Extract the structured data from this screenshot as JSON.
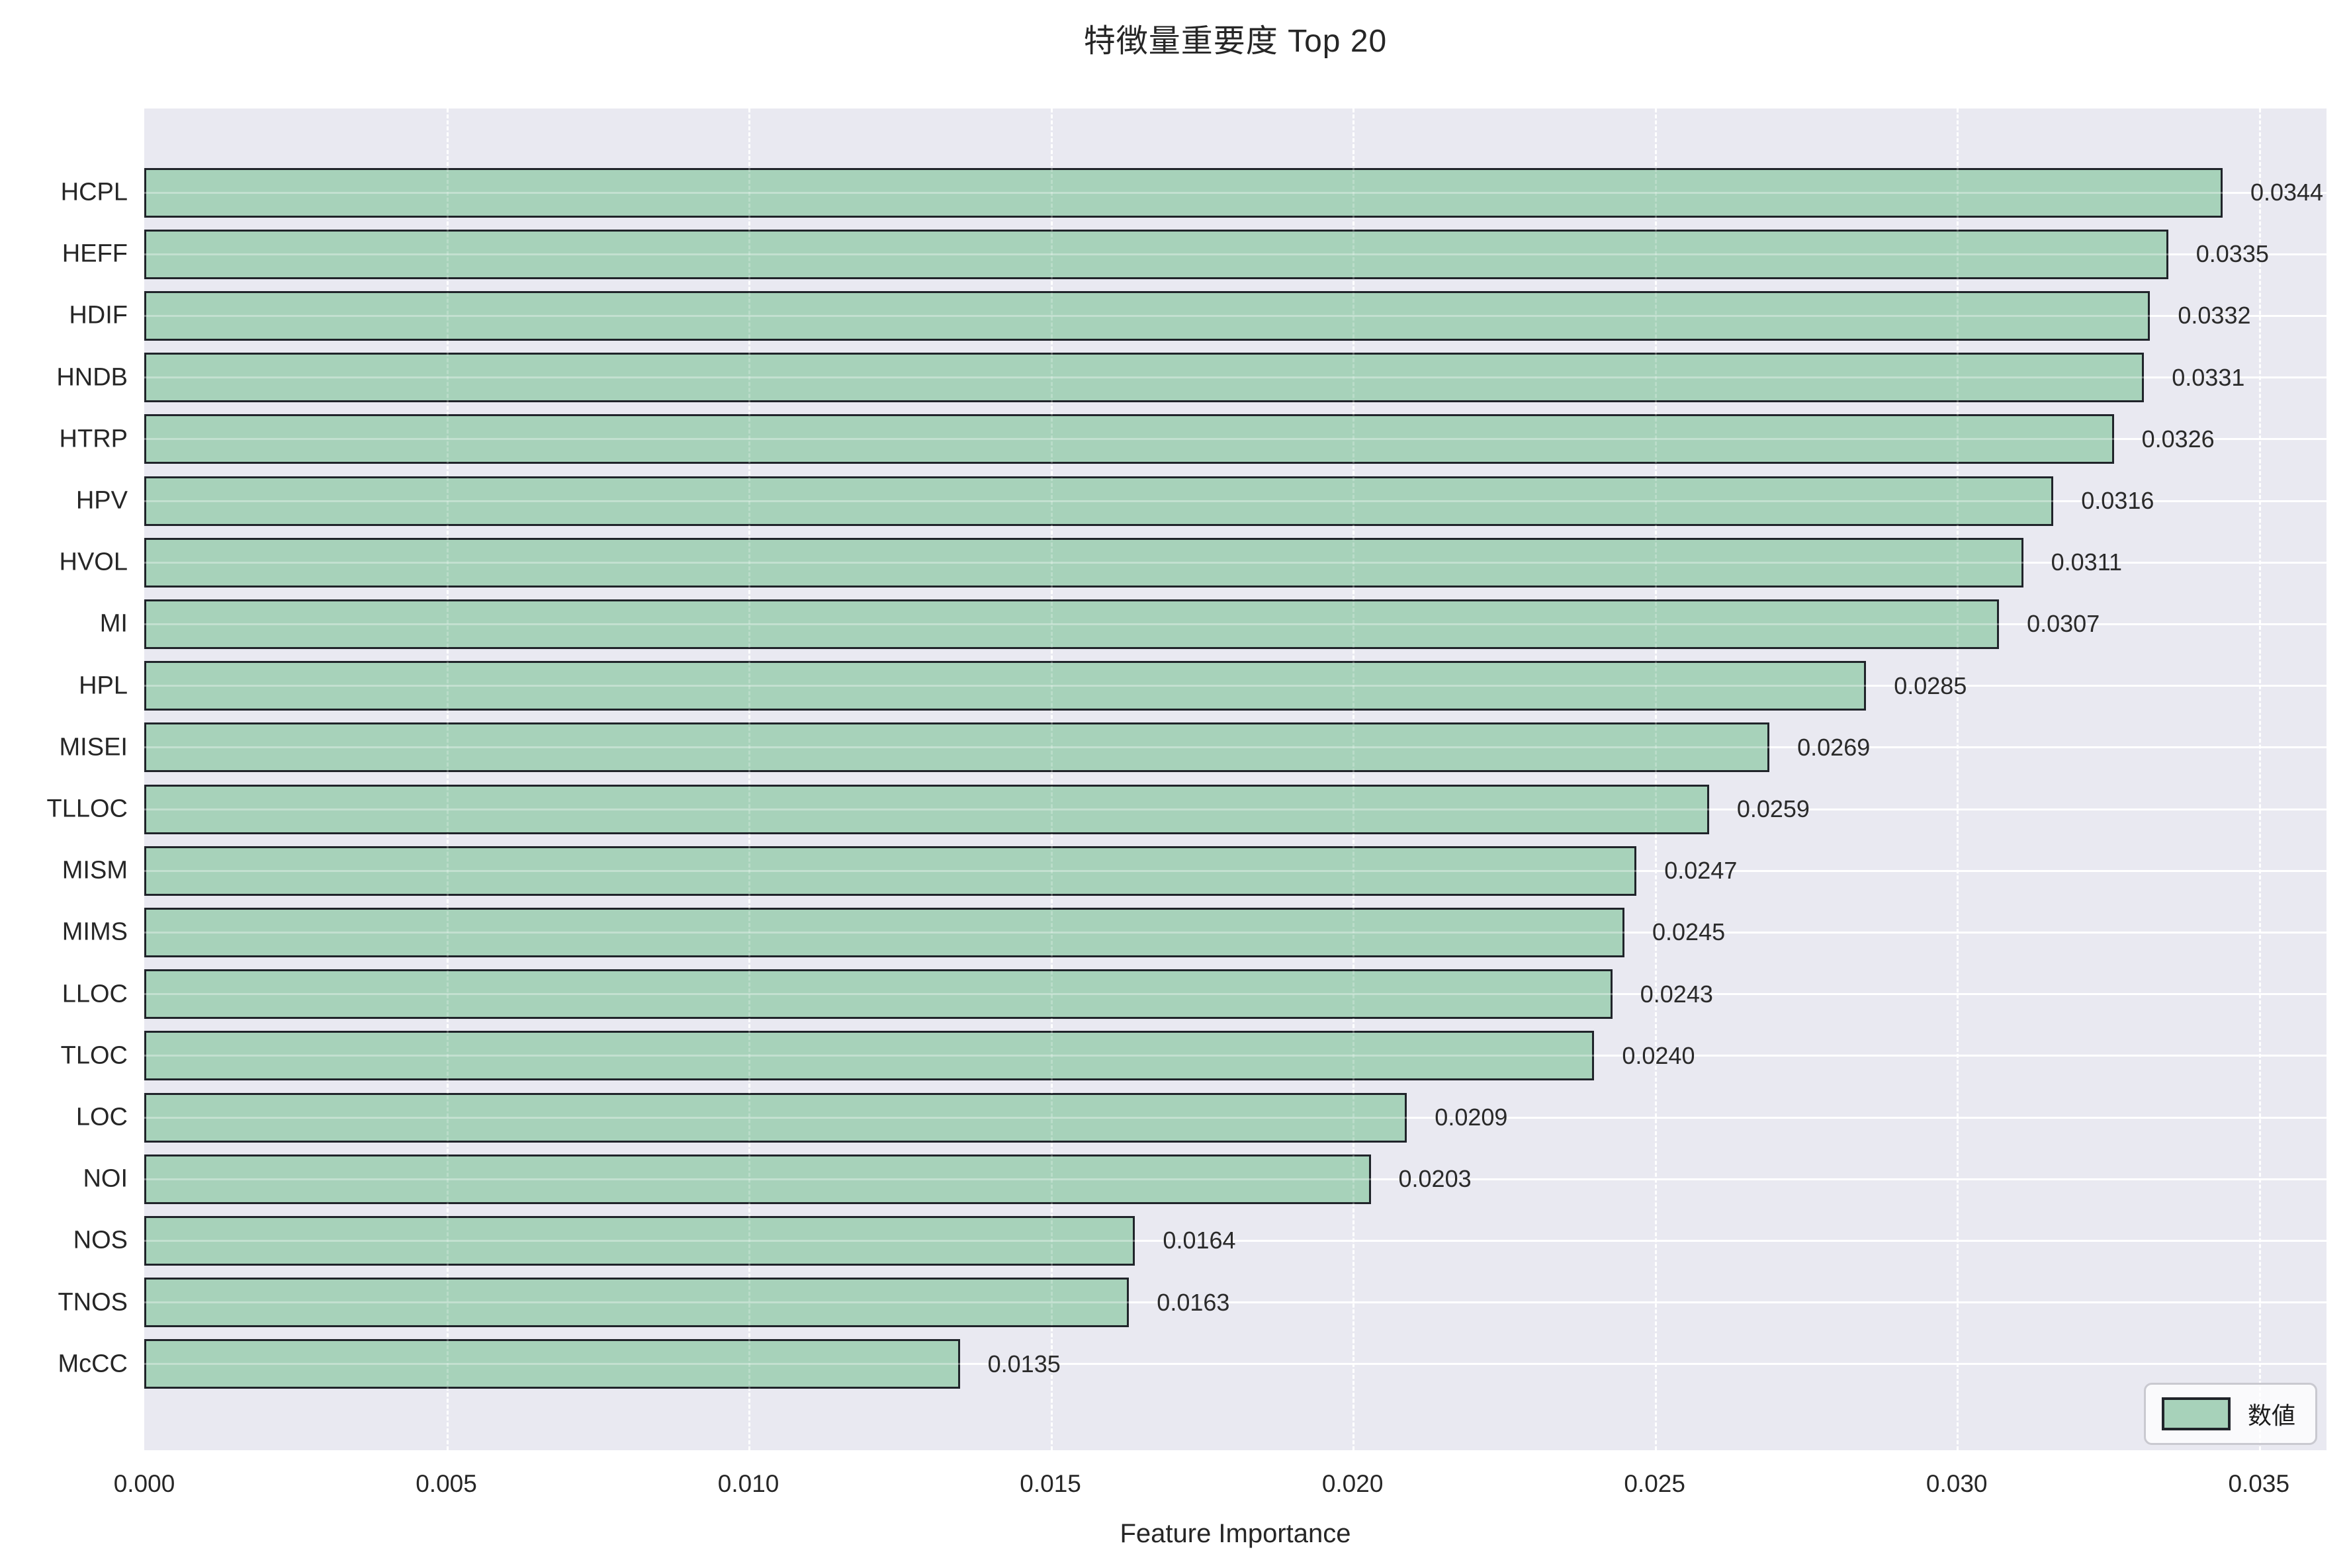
{
  "title": "特徴量重要度 Top 20",
  "chart_data": {
    "type": "bar",
    "orientation": "horizontal",
    "title": "特徴量重要度 Top 20",
    "xlabel": "Feature Importance",
    "ylabel": "",
    "categories": [
      "HCPL",
      "HEFF",
      "HDIF",
      "HNDB",
      "HTRP",
      "HPV",
      "HVOL",
      "MI",
      "HPL",
      "MISEI",
      "TLLOC",
      "MISM",
      "MIMS",
      "LLOC",
      "TLOC",
      "LOC",
      "NOI",
      "NOS",
      "TNOS",
      "McCC"
    ],
    "values": [
      0.0344,
      0.0335,
      0.0332,
      0.0331,
      0.0326,
      0.0316,
      0.0311,
      0.0307,
      0.0285,
      0.0269,
      0.0259,
      0.0247,
      0.0245,
      0.0243,
      0.024,
      0.0209,
      0.0203,
      0.0164,
      0.0163,
      0.0135
    ],
    "value_labels": [
      "0.0344",
      "0.0335",
      "0.0332",
      "0.0331",
      "0.0326",
      "0.0316",
      "0.0311",
      "0.0307",
      "0.0285",
      "0.0269",
      "0.0259",
      "0.0247",
      "0.0245",
      "0.0243",
      "0.0240",
      "0.0209",
      "0.0203",
      "0.0164",
      "0.0163",
      "0.0135"
    ],
    "xlim": [
      0,
      0.03612
    ],
    "xticks": [
      0,
      0.005,
      0.01,
      0.015,
      0.02,
      0.025,
      0.03,
      0.035
    ],
    "xtick_labels": [
      "0.000",
      "0.005",
      "0.010",
      "0.015",
      "0.020",
      "0.025",
      "0.030",
      "0.035"
    ],
    "grid": true,
    "legend_position": "lower right",
    "legend": [
      {
        "label": "数値",
        "color": "#a7d2ba"
      }
    ]
  },
  "colors": {
    "bar_fill": "#a7d2ba",
    "bar_edge": "#20242a",
    "plot_background": "#e9e9f1",
    "grid": "#ffffff",
    "text": "#262626"
  }
}
